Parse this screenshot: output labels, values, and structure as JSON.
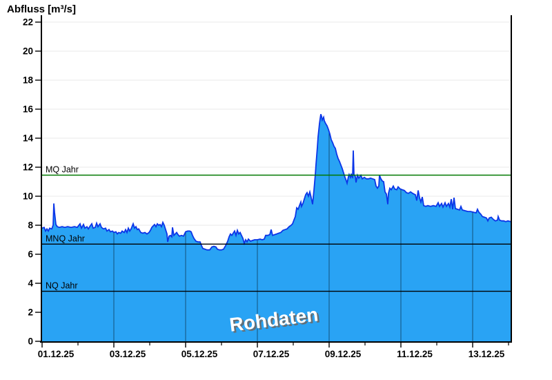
{
  "title": "Abfluss [m³/s]",
  "watermark": {
    "text": "Rohdaten",
    "color": "#ffffff",
    "shadow_color": "#6a6a6a",
    "rotation_deg": -7,
    "font_size": 28
  },
  "chart_data": {
    "type": "area",
    "title": "Abfluss [m³/s]",
    "ylabel": "Abfluss [m³/s]",
    "xlabel": "",
    "ylim": [
      0,
      22.5
    ],
    "yticks": [
      0,
      2,
      4,
      6,
      8,
      10,
      12,
      14,
      16,
      18,
      20,
      22
    ],
    "grid": {
      "horizontal": true,
      "vertical_drawn_only_inside_area": true
    },
    "legend": null,
    "x_axis": {
      "range_days": [
        0,
        13.06
      ],
      "major_ticks": [
        {
          "day": 0,
          "label": "01.12.25"
        },
        {
          "day": 2,
          "label": "03.12.25"
        },
        {
          "day": 4,
          "label": "05.12.25"
        },
        {
          "day": 6,
          "label": "07.12.25"
        },
        {
          "day": 8,
          "label": "09.12.25"
        },
        {
          "day": 10,
          "label": "11.12.25"
        },
        {
          "day": 12,
          "label": "13.12.25"
        }
      ],
      "minor_tick_days": [
        1,
        3,
        5,
        7,
        9,
        11,
        13
      ],
      "gridline_days": [
        2,
        4,
        6,
        8,
        10,
        12
      ]
    },
    "reference_lines": [
      {
        "id": "mq-jahr",
        "label": "MQ Jahr",
        "value": 11.45,
        "color": "#007800"
      },
      {
        "id": "mnq-jahr",
        "label": "MNQ Jahr",
        "value": 6.7,
        "color": "#000000"
      },
      {
        "id": "nq-jahr",
        "label": "NQ Jahr",
        "value": 3.45,
        "color": "#000000"
      }
    ],
    "colors": {
      "fill": "#29A3F4",
      "stroke": "#0B35E8",
      "h_grid": "#e9e9e9",
      "v_grid_over_area": "rgba(0,0,0,0.5)",
      "axis": "#000000"
    },
    "series": [
      {
        "name": "Rohdaten",
        "unit": "m³/s",
        "points": [
          [
            0,
            7.8
          ],
          [
            0.058,
            7.85
          ],
          [
            0.096,
            7.6
          ],
          [
            0.135,
            7.75
          ],
          [
            0.173,
            7.6
          ],
          [
            0.212,
            7.8
          ],
          [
            0.269,
            7.75
          ],
          [
            0.308,
            8.0
          ],
          [
            0.327,
            9.5
          ],
          [
            0.346,
            8.9
          ],
          [
            0.385,
            8.05
          ],
          [
            0.423,
            7.9
          ],
          [
            0.481,
            7.85
          ],
          [
            0.558,
            7.9
          ],
          [
            0.635,
            7.85
          ],
          [
            0.712,
            7.9
          ],
          [
            0.808,
            7.85
          ],
          [
            0.904,
            7.9
          ],
          [
            0.981,
            7.85
          ],
          [
            1.058,
            8.1
          ],
          [
            1.096,
            7.8
          ],
          [
            1.154,
            8.05
          ],
          [
            1.192,
            7.8
          ],
          [
            1.25,
            7.9
          ],
          [
            1.288,
            7.75
          ],
          [
            1.327,
            7.9
          ],
          [
            1.385,
            8.1
          ],
          [
            1.423,
            7.8
          ],
          [
            1.481,
            7.85
          ],
          [
            1.519,
            8.15
          ],
          [
            1.558,
            7.9
          ],
          [
            1.615,
            8.1
          ],
          [
            1.654,
            7.85
          ],
          [
            1.712,
            7.75
          ],
          [
            1.769,
            7.8
          ],
          [
            1.808,
            7.6
          ],
          [
            1.865,
            7.7
          ],
          [
            1.904,
            7.55
          ],
          [
            1.962,
            7.6
          ],
          [
            2.0,
            7.5
          ],
          [
            2.058,
            7.55
          ],
          [
            2.096,
            7.4
          ],
          [
            2.135,
            7.5
          ],
          [
            2.192,
            7.45
          ],
          [
            2.231,
            7.6
          ],
          [
            2.288,
            7.5
          ],
          [
            2.327,
            7.7
          ],
          [
            2.365,
            7.5
          ],
          [
            2.404,
            7.8
          ],
          [
            2.442,
            7.6
          ],
          [
            2.481,
            7.75
          ],
          [
            2.538,
            8.1
          ],
          [
            2.577,
            7.8
          ],
          [
            2.615,
            7.9
          ],
          [
            2.654,
            7.7
          ],
          [
            2.692,
            7.75
          ],
          [
            2.75,
            7.5
          ],
          [
            2.808,
            7.45
          ],
          [
            2.865,
            7.5
          ],
          [
            2.923,
            7.4
          ],
          [
            2.981,
            7.5
          ],
          [
            3.019,
            7.65
          ],
          [
            3.058,
            7.85
          ],
          [
            3.096,
            7.95
          ],
          [
            3.135,
            8.05
          ],
          [
            3.173,
            7.9
          ],
          [
            3.212,
            8.1
          ],
          [
            3.25,
            8.0
          ],
          [
            3.288,
            8.05
          ],
          [
            3.327,
            7.9
          ],
          [
            3.365,
            8.2
          ],
          [
            3.404,
            8.0
          ],
          [
            3.442,
            7.7
          ],
          [
            3.481,
            7.4
          ],
          [
            3.5,
            6.85
          ],
          [
            3.538,
            7.25
          ],
          [
            3.577,
            7.3
          ],
          [
            3.615,
            7.2
          ],
          [
            3.635,
            7.85
          ],
          [
            3.673,
            7.3
          ],
          [
            3.712,
            7.4
          ],
          [
            3.75,
            7.5
          ],
          [
            3.788,
            7.35
          ],
          [
            3.827,
            7.25
          ],
          [
            3.885,
            7.3
          ],
          [
            3.942,
            7.25
          ],
          [
            4.0,
            7.55
          ],
          [
            4.058,
            7.6
          ],
          [
            4.115,
            7.6
          ],
          [
            4.154,
            7.55
          ],
          [
            4.192,
            7.3
          ],
          [
            4.231,
            7.1
          ],
          [
            4.288,
            6.9
          ],
          [
            4.346,
            6.85
          ],
          [
            4.404,
            6.85
          ],
          [
            4.442,
            6.6
          ],
          [
            4.481,
            6.4
          ],
          [
            4.538,
            6.35
          ],
          [
            4.596,
            6.3
          ],
          [
            4.673,
            6.3
          ],
          [
            4.731,
            6.5
          ],
          [
            4.788,
            6.55
          ],
          [
            4.846,
            6.5
          ],
          [
            4.885,
            6.35
          ],
          [
            4.942,
            6.3
          ],
          [
            5.0,
            6.3
          ],
          [
            5.058,
            6.35
          ],
          [
            5.115,
            6.6
          ],
          [
            5.173,
            6.9
          ],
          [
            5.212,
            7.2
          ],
          [
            5.25,
            7.4
          ],
          [
            5.288,
            7.3
          ],
          [
            5.327,
            7.45
          ],
          [
            5.365,
            7.6
          ],
          [
            5.404,
            7.3
          ],
          [
            5.442,
            7.65
          ],
          [
            5.481,
            7.4
          ],
          [
            5.519,
            7.5
          ],
          [
            5.558,
            7.3
          ],
          [
            5.596,
            7.1
          ],
          [
            5.635,
            6.75
          ],
          [
            5.673,
            7.0
          ],
          [
            5.712,
            6.85
          ],
          [
            5.75,
            7.05
          ],
          [
            5.808,
            6.9
          ],
          [
            5.865,
            6.95
          ],
          [
            5.923,
            7.0
          ],
          [
            6.0,
            7.0
          ],
          [
            6.077,
            7.05
          ],
          [
            6.135,
            7.0
          ],
          [
            6.192,
            7.05
          ],
          [
            6.231,
            7.3
          ],
          [
            6.288,
            7.3
          ],
          [
            6.346,
            7.35
          ],
          [
            6.385,
            7.7
          ],
          [
            6.423,
            7.3
          ],
          [
            6.481,
            7.35
          ],
          [
            6.538,
            7.4
          ],
          [
            6.596,
            7.45
          ],
          [
            6.654,
            7.5
          ],
          [
            6.712,
            7.65
          ],
          [
            6.769,
            7.7
          ],
          [
            6.827,
            7.75
          ],
          [
            6.885,
            7.9
          ],
          [
            6.942,
            8.0
          ],
          [
            6.981,
            8.1
          ],
          [
            7.019,
            8.35
          ],
          [
            7.058,
            8.6
          ],
          [
            7.096,
            9.2
          ],
          [
            7.135,
            9.1
          ],
          [
            7.173,
            9.35
          ],
          [
            7.212,
            9.6
          ],
          [
            7.231,
            9.3
          ],
          [
            7.269,
            9.5
          ],
          [
            7.308,
            9.8
          ],
          [
            7.346,
            10.1
          ],
          [
            7.385,
            10.25
          ],
          [
            7.423,
            10.0
          ],
          [
            7.462,
            10.3
          ],
          [
            7.5,
            9.9
          ],
          [
            7.538,
            9.45
          ],
          [
            7.577,
            10.4
          ],
          [
            7.615,
            11.5
          ],
          [
            7.635,
            12.2
          ],
          [
            7.673,
            13.4
          ],
          [
            7.692,
            14.1
          ],
          [
            7.731,
            15.0
          ],
          [
            7.75,
            15.35
          ],
          [
            7.769,
            15.65
          ],
          [
            7.788,
            15.5
          ],
          [
            7.808,
            15.25
          ],
          [
            7.827,
            15.35
          ],
          [
            7.846,
            15.45
          ],
          [
            7.865,
            15.2
          ],
          [
            7.904,
            15.0
          ],
          [
            7.942,
            14.85
          ],
          [
            7.981,
            14.6
          ],
          [
            8.019,
            14.3
          ],
          [
            8.058,
            13.9
          ],
          [
            8.096,
            13.7
          ],
          [
            8.135,
            13.45
          ],
          [
            8.173,
            13.3
          ],
          [
            8.212,
            12.9
          ],
          [
            8.25,
            12.6
          ],
          [
            8.288,
            12.4
          ],
          [
            8.327,
            12.15
          ],
          [
            8.365,
            11.9
          ],
          [
            8.404,
            11.6
          ],
          [
            8.442,
            11.3
          ],
          [
            8.481,
            11.05
          ],
          [
            8.5,
            10.9
          ],
          [
            8.538,
            11.35
          ],
          [
            8.558,
            11.5
          ],
          [
            8.596,
            11.3
          ],
          [
            8.615,
            11.55
          ],
          [
            8.635,
            11.35
          ],
          [
            8.654,
            11.3
          ],
          [
            8.673,
            13.15
          ],
          [
            8.692,
            11.5
          ],
          [
            8.731,
            11.35
          ],
          [
            8.75,
            10.95
          ],
          [
            8.788,
            11.45
          ],
          [
            8.827,
            11.25
          ],
          [
            8.885,
            11.45
          ],
          [
            8.923,
            11.2
          ],
          [
            8.981,
            11.3
          ],
          [
            9.038,
            11.2
          ],
          [
            9.096,
            11.2
          ],
          [
            9.154,
            11.25
          ],
          [
            9.212,
            11.2
          ],
          [
            9.269,
            11.15
          ],
          [
            9.308,
            10.7
          ],
          [
            9.346,
            10.55
          ],
          [
            9.385,
            10.7
          ],
          [
            9.404,
            11.45
          ],
          [
            9.442,
            11.2
          ],
          [
            9.481,
            11.05
          ],
          [
            9.519,
            11.0
          ],
          [
            9.558,
            10.3
          ],
          [
            9.596,
            10.15
          ],
          [
            9.635,
            9.45
          ],
          [
            9.654,
            10.2
          ],
          [
            9.692,
            10.55
          ],
          [
            9.731,
            10.45
          ],
          [
            9.788,
            10.7
          ],
          [
            9.827,
            10.5
          ],
          [
            9.885,
            10.45
          ],
          [
            9.923,
            10.65
          ],
          [
            9.981,
            10.5
          ],
          [
            10.038,
            10.45
          ],
          [
            10.096,
            10.4
          ],
          [
            10.154,
            10.25
          ],
          [
            10.212,
            10.2
          ],
          [
            10.269,
            10.3
          ],
          [
            10.327,
            10.2
          ],
          [
            10.365,
            10.15
          ],
          [
            10.404,
            10.1
          ],
          [
            10.442,
            9.7
          ],
          [
            10.481,
            10.4
          ],
          [
            10.519,
            9.9
          ],
          [
            10.558,
            9.6
          ],
          [
            10.596,
            9.95
          ],
          [
            10.635,
            9.35
          ],
          [
            10.692,
            9.3
          ],
          [
            10.75,
            9.35
          ],
          [
            10.827,
            9.3
          ],
          [
            10.904,
            9.35
          ],
          [
            10.981,
            9.3
          ],
          [
            11.038,
            9.55
          ],
          [
            11.077,
            9.3
          ],
          [
            11.135,
            9.5
          ],
          [
            11.173,
            9.25
          ],
          [
            11.231,
            9.55
          ],
          [
            11.269,
            9.3
          ],
          [
            11.327,
            9.5
          ],
          [
            11.365,
            9.25
          ],
          [
            11.404,
            9.8
          ],
          [
            11.442,
            9.1
          ],
          [
            11.481,
            9.9
          ],
          [
            11.519,
            9.15
          ],
          [
            11.577,
            9.1
          ],
          [
            11.635,
            9.05
          ],
          [
            11.673,
            9.3
          ],
          [
            11.712,
            9.05
          ],
          [
            11.788,
            9.0
          ],
          [
            11.865,
            8.95
          ],
          [
            11.942,
            8.95
          ],
          [
            12.019,
            8.9
          ],
          [
            12.096,
            8.85
          ],
          [
            12.135,
            9.1
          ],
          [
            12.173,
            8.9
          ],
          [
            12.231,
            8.75
          ],
          [
            12.269,
            8.6
          ],
          [
            12.327,
            8.55
          ],
          [
            12.385,
            8.5
          ],
          [
            12.423,
            8.3
          ],
          [
            12.462,
            8.5
          ],
          [
            12.519,
            8.55
          ],
          [
            12.577,
            8.4
          ],
          [
            12.635,
            8.3
          ],
          [
            12.692,
            8.35
          ],
          [
            12.712,
            8.6
          ],
          [
            12.75,
            8.35
          ],
          [
            12.808,
            8.3
          ],
          [
            12.865,
            8.3
          ],
          [
            12.923,
            8.25
          ],
          [
            12.981,
            8.3
          ],
          [
            13.06,
            8.25
          ]
        ]
      }
    ]
  }
}
